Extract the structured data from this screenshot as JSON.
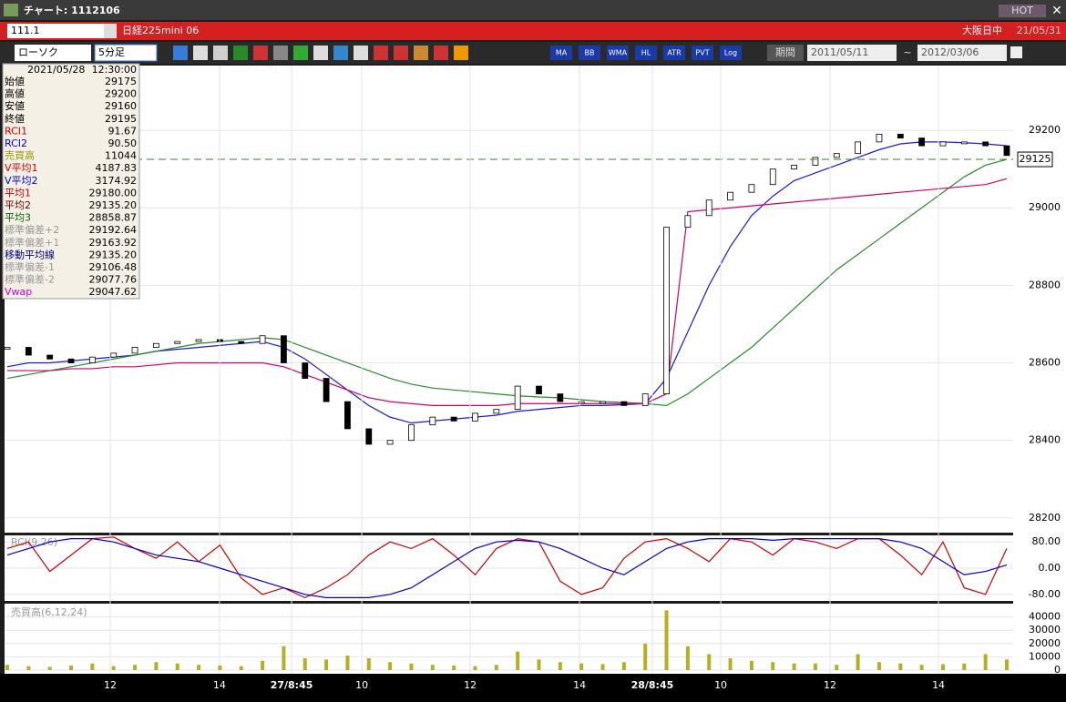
{
  "window": {
    "title": "チャート: 1112106",
    "hot": "HOT"
  },
  "header": {
    "code": "111.1",
    "name": "日経225mini 06",
    "session": "大阪日中",
    "date": "21/05/31"
  },
  "toolbar": {
    "chart_style": "ローソク",
    "interval": "5分足",
    "buttons": [
      "MA",
      "BB",
      "WMA",
      "HL",
      "ATR",
      "PVT",
      "Log"
    ],
    "period": "期間",
    "start": "2011/05/11",
    "tilde": "~",
    "end": "2012/03/06"
  },
  "info": {
    "datetime": "2021/05/28",
    "time": "12:30:00",
    "rows": [
      {
        "label": "始値",
        "value": "29175",
        "color": "#000000"
      },
      {
        "label": "高値",
        "value": "29200",
        "color": "#000000"
      },
      {
        "label": "安値",
        "value": "29160",
        "color": "#000000"
      },
      {
        "label": "終値",
        "value": "29195",
        "color": "#000000"
      },
      {
        "label": "RCI1",
        "value": "91.67",
        "color": "#cc0000"
      },
      {
        "label": "RCI2",
        "value": "90.50",
        "color": "#0000cc"
      },
      {
        "label": "売買高",
        "value": "11044",
        "color": "#999900"
      },
      {
        "label": "V平均1",
        "value": "4187.83",
        "color": "#cc0000"
      },
      {
        "label": "V平均2",
        "value": "3174.92",
        "color": "#0000cc"
      },
      {
        "label": "平均1",
        "value": "29180.00",
        "color": "#cc0000"
      },
      {
        "label": "平均2",
        "value": "29135.20",
        "color": "#660000"
      },
      {
        "label": "平均3",
        "value": "28858.87",
        "color": "#006600"
      },
      {
        "label": "標準偏差+2",
        "value": "29192.64",
        "color": "#999999"
      },
      {
        "label": "標準偏差+1",
        "value": "29163.92",
        "color": "#999999"
      },
      {
        "label": "移動平均線",
        "value": "29135.20",
        "color": "#000080"
      },
      {
        "label": "標準偏差-1",
        "value": "29106.48",
        "color": "#999999"
      },
      {
        "label": "標準偏差-2",
        "value": "29077.76",
        "color": "#999999"
      },
      {
        "label": "Vwap",
        "value": "29047.62",
        "color": "#cc00cc"
      }
    ]
  },
  "chart_data": [
    {
      "type": "candlestick",
      "up_color": "#ffffff",
      "down_color": "#000000",
      "values": [
        28640,
        28620,
        28610,
        28600,
        28615,
        28625,
        28640,
        28650,
        28655,
        28660,
        28655,
        28650,
        28670,
        28600,
        28560,
        28500,
        28430,
        28390,
        28400,
        28440,
        28460,
        28450,
        28470,
        28480,
        28540,
        28520,
        28500,
        28500,
        28500,
        28490,
        28520,
        28950,
        28980,
        29020,
        29040,
        29060,
        29100,
        29110,
        29130,
        29140,
        29170,
        29190,
        29180,
        29160,
        29170,
        29170,
        29160,
        29135
      ],
      "series": [
        {
          "color": "#1a1adc",
          "values": [
            28590,
            28600,
            28600,
            28605,
            28610,
            28615,
            28620,
            28630,
            28635,
            28640,
            28645,
            28650,
            28655,
            28640,
            28610,
            28570,
            28530,
            28490,
            28460,
            28445,
            28450,
            28455,
            28460,
            28465,
            28475,
            28480,
            28485,
            28490,
            28490,
            28492,
            28495,
            28560,
            28680,
            28800,
            28900,
            28980,
            29030,
            29070,
            29090,
            29110,
            29130,
            29150,
            29165,
            29170,
            29170,
            29168,
            29165,
            29160
          ]
        },
        {
          "color": "#2a8a2a",
          "values": [
            28560,
            28570,
            28580,
            28590,
            28600,
            28610,
            28620,
            28630,
            28640,
            28650,
            28655,
            28660,
            28665,
            28660,
            28640,
            28620,
            28600,
            28580,
            28560,
            28545,
            28535,
            28530,
            28525,
            28520,
            28515,
            28512,
            28510,
            28505,
            28500,
            28498,
            28495,
            28490,
            28520,
            28560,
            28600,
            28640,
            28690,
            28740,
            28790,
            28840,
            28880,
            28920,
            28960,
            29000,
            29040,
            29080,
            29110,
            29125
          ]
        },
        {
          "color": "#d0006a",
          "values": [
            28580,
            28580,
            28580,
            28585,
            28585,
            28590,
            28590,
            28595,
            28600,
            28600,
            28600,
            28600,
            28600,
            28590,
            28570,
            28550,
            28530,
            28510,
            28500,
            28495,
            28490,
            28490,
            28490,
            28490,
            28495,
            28495,
            28495,
            28495,
            28495,
            28495,
            28495,
            28520,
            28990,
            28995,
            29000,
            29005,
            29010,
            29015,
            29020,
            29025,
            29030,
            29035,
            29040,
            29045,
            29050,
            29055,
            29060,
            29075
          ]
        }
      ],
      "current_value": 29125,
      "current_color": "#2a8a2a",
      "ylim": [
        28162,
        29367
      ],
      "yticks": [
        29200,
        29000,
        28800,
        28600,
        28400,
        28200
      ],
      "xlim": [
        0,
        47
      ],
      "xticks": [
        {
          "value": 4.84,
          "label": "12"
        },
        {
          "value": 9.98,
          "label": "14"
        },
        {
          "value": 13.37,
          "label": "27/8:45"
        },
        {
          "value": 16.67,
          "label": "10"
        },
        {
          "value": 21.77,
          "label": "12"
        },
        {
          "value": 26.91,
          "label": "14"
        },
        {
          "value": 30.33,
          "label": "28/8:45"
        },
        {
          "value": 33.55,
          "label": "10"
        },
        {
          "value": 38.69,
          "label": "12"
        },
        {
          "value": 43.79,
          "label": "14"
        }
      ]
    },
    {
      "type": "line",
      "title": "RCI(9,26)",
      "series": [
        {
          "color": "#cc0000",
          "values": [
            60,
            80,
            -10,
            40,
            90,
            95,
            60,
            30,
            80,
            20,
            70,
            -30,
            -80,
            -60,
            -90,
            -60,
            -20,
            40,
            80,
            60,
            90,
            40,
            -20,
            60,
            90,
            80,
            -40,
            -80,
            -60,
            30,
            80,
            90,
            60,
            20,
            90,
            80,
            40,
            90,
            80,
            60,
            90,
            90,
            40,
            -20,
            80,
            -60,
            -80,
            60
          ]
        },
        {
          "color": "#0000cc",
          "values": [
            40,
            60,
            80,
            90,
            90,
            80,
            60,
            40,
            30,
            20,
            0,
            -20,
            -40,
            -60,
            -80,
            -90,
            -90,
            -90,
            -80,
            -60,
            -20,
            20,
            60,
            80,
            85,
            80,
            60,
            30,
            0,
            -20,
            20,
            60,
            80,
            90,
            90,
            90,
            85,
            90,
            90,
            90,
            90,
            90,
            80,
            60,
            20,
            -20,
            -10,
            10
          ]
        }
      ],
      "ylim": [
        -100,
        100
      ],
      "yticks": [
        {
          "value": 80,
          "label": "80.00"
        },
        {
          "value": 0,
          "label": "0.00"
        },
        {
          "value": -80,
          "label": "-80.00"
        }
      ]
    },
    {
      "type": "bar",
      "title": "売買高(6,12,24)",
      "color": "#b5b022",
      "values": [
        4000,
        3000,
        2500,
        3500,
        5000,
        3000,
        4000,
        6000,
        5000,
        4000,
        3500,
        3000,
        7000,
        18000,
        9000,
        8000,
        11000,
        9000,
        6000,
        5000,
        4000,
        3500,
        3000,
        4000,
        14000,
        8000,
        6000,
        5000,
        4500,
        6000,
        20000,
        45000,
        18000,
        12000,
        9000,
        7000,
        6000,
        5000,
        5000,
        4000,
        12000,
        6000,
        5000,
        4000,
        4500,
        5000,
        12000,
        8000
      ],
      "ylim": [
        0,
        50000
      ],
      "yticks": [
        40000,
        30000,
        20000,
        10000,
        0
      ]
    }
  ]
}
